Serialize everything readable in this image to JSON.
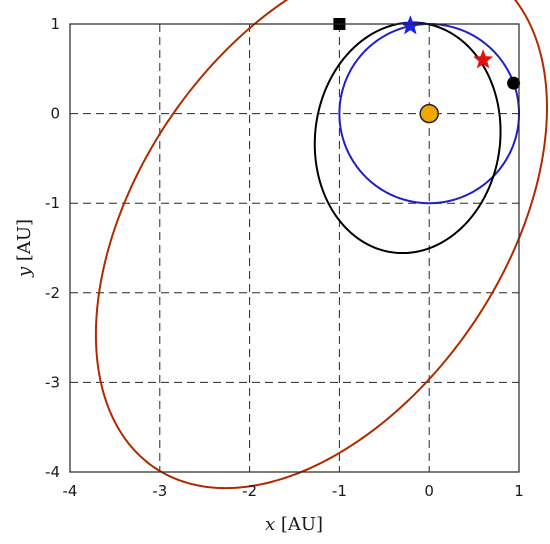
{
  "chart_data": {
    "type": "line",
    "xlabel": {
      "var": "x",
      "unit": " [AU]"
    },
    "ylabel": {
      "var": "y",
      "unit": " [AU]"
    },
    "xlim": [
      -4,
      1
    ],
    "ylim": [
      -4,
      1
    ],
    "x_ticks": [
      "-4",
      "-3",
      "-2",
      "-1",
      "0",
      "1"
    ],
    "y_ticks": [
      "-4",
      "-3",
      "-2",
      "-1",
      "0",
      "1"
    ],
    "grid": true,
    "grid_style": "dashed",
    "series": [
      {
        "id": "blue-orbit",
        "color": "#1f1fc8",
        "ellipse": {
          "cx": 0.0,
          "cy": 0.0,
          "a": 1.0,
          "b": 1.0,
          "angle_deg": 0
        }
      },
      {
        "id": "black-orbit",
        "color": "#000000",
        "ellipse": {
          "cx": -0.24,
          "cy": -0.27,
          "a": 1.29,
          "b": 1.03,
          "angle_deg": 83
        }
      },
      {
        "id": "red-orbit",
        "color": "#b02a00",
        "ellipse": {
          "cx": -1.2,
          "cy": -1.2,
          "a": 3.32,
          "b": 2.04,
          "angle_deg": 56
        }
      }
    ],
    "markers": [
      {
        "id": "sun-marker",
        "shape": "circle",
        "x": 0.0,
        "y": 0.0,
        "color": "#f0a800"
      },
      {
        "id": "blue-star-marker",
        "shape": "star",
        "x": -0.21,
        "y": 0.98,
        "color": "#1f1fe6"
      },
      {
        "id": "red-star-marker",
        "shape": "star",
        "x": 0.6,
        "y": 0.6,
        "color": "#e01010"
      },
      {
        "id": "black-square-marker",
        "shape": "square",
        "x": -1.0,
        "y": 1.0,
        "color": "#000000"
      },
      {
        "id": "black-circle-marker",
        "shape": "circle",
        "x": 0.94,
        "y": 0.34,
        "color": "#000000"
      }
    ]
  }
}
